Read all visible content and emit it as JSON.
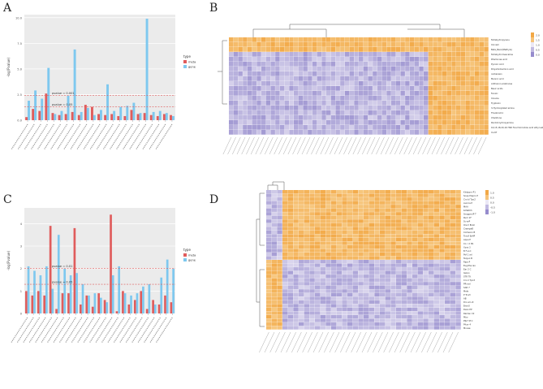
{
  "panels": {
    "a": "A",
    "b": "B",
    "c": "C",
    "d": "D"
  },
  "chart_data": [
    {
      "type": "bar",
      "panel": "A",
      "ylabel": "-log(Pvalue)",
      "yticks": [
        "0.0",
        "2.5",
        "5.0",
        "7.5",
        "10.0"
      ],
      "ylim": [
        0,
        10.3
      ],
      "categories": [
        "c1",
        "c2",
        "c3",
        "c4",
        "c5",
        "c6",
        "c7",
        "c8",
        "c9",
        "c10",
        "c11",
        "c12",
        "c13",
        "c14",
        "c15",
        "c16",
        "c17",
        "c18",
        "c19",
        "c20",
        "c21",
        "c22",
        "c23"
      ],
      "series": [
        {
          "name": "meta",
          "color": "#e05c5c",
          "values": [
            0.3,
            1.1,
            0.9,
            2.6,
            0.7,
            0.5,
            0.6,
            0.8,
            0.5,
            1.5,
            1.3,
            0.6,
            0.5,
            0.6,
            0.4,
            0.4,
            1.0,
            0.6,
            0.7,
            0.5,
            0.4,
            0.6,
            0.5
          ]
        },
        {
          "name": "gene",
          "color": "#7ec8ef",
          "values": [
            1.9,
            2.9,
            2.1,
            5.1,
            0.6,
            0.9,
            2.4,
            6.9,
            0.8,
            1.2,
            0.5,
            1.0,
            3.5,
            0.9,
            1.3,
            1.4,
            1.7,
            0.7,
            9.9,
            0.8,
            0.9,
            0.7,
            0.4
          ]
        }
      ],
      "thresholds": [
        {
          "label": "pvalue = 0.05",
          "value": 1.3
        },
        {
          "label": "pvalue = 0.001",
          "value": 2.4
        }
      ],
      "legend": {
        "title": "type",
        "position": "right"
      }
    },
    {
      "type": "bar",
      "panel": "C",
      "ylabel": "-log(Pvalue)",
      "yticks": [
        "0",
        "1",
        "2",
        "3",
        "4"
      ],
      "ylim": [
        0,
        4.7
      ],
      "categories": [
        "c1",
        "c2",
        "c3",
        "c4",
        "c5",
        "c6",
        "c7",
        "c8",
        "c9",
        "c10",
        "c11",
        "c12",
        "c13",
        "c14",
        "c15",
        "c16",
        "c17",
        "c18",
        "c19",
        "c20",
        "c21",
        "c22",
        "c23",
        "c24",
        "c25"
      ],
      "series": [
        {
          "name": "meta",
          "color": "#e05c5c",
          "values": [
            1.0,
            0.8,
            1.0,
            0.8,
            3.9,
            0.2,
            0.9,
            0.9,
            3.8,
            0.4,
            0.8,
            0.3,
            0.9,
            0.6,
            4.4,
            0.1,
            1.0,
            0.4,
            0.6,
            1.0,
            0.2,
            0.6,
            0.4,
            0.8,
            0.5
          ]
        },
        {
          "name": "gene",
          "color": "#7ec8ef",
          "values": [
            2.1,
            1.9,
            1.7,
            2.1,
            1.1,
            3.5,
            2.0,
            1.7,
            1.8,
            1.3,
            0.8,
            0.9,
            0.7,
            0.5,
            1.7,
            2.1,
            0.9,
            0.8,
            0.9,
            1.2,
            1.3,
            0.4,
            1.6,
            2.4,
            2.0
          ]
        }
      ],
      "thresholds": [
        {
          "label": "pvalue = 0.01",
          "value": 2.0
        },
        {
          "label": "pvalue = 0.05",
          "value": 1.3
        }
      ],
      "legend": {
        "title": "type",
        "position": "right"
      }
    },
    {
      "type": "heatmap",
      "panel": "B",
      "row_labels": [
        "Tetrahydropyrans",
        "Cinnam",
        "Beta_Benz(Methyls)",
        "Tetrahydromescaline",
        "Rhamnose acid",
        "Pyroxic Acid",
        "Polyamidoamino acid",
        "carbarasin",
        "Mannic acid",
        "Anthanon.arabinose",
        "Basic acids",
        "Ferulic",
        "Cineole",
        "Tryptoxin",
        "3-Hydroxylated amine",
        "Theobromic",
        "Chelidone",
        "Pent-6-hydroxyamine",
        "16,15,18,20,16 HSD Fenchlorindole acid ethyl ester",
        "CL-6T"
      ],
      "legend": {
        "labels": [
          "2.0",
          "1.5",
          "1.0",
          "0.5",
          "0.0"
        ],
        "position": "right"
      },
      "blocks": {
        "orange_from_col": 0.77,
        "top_orange_rows": 3
      }
    },
    {
      "type": "heatmap",
      "panel": "D",
      "row_labels": [
        "Klotpyro P1",
        "Snap P/apro P",
        "Cro bl Tpo2",
        "Aurora P",
        "MAA",
        "K-MatCh",
        "Snapper/P T",
        "Rum 1F",
        "Sc-arP",
        "Ore ll BcsC",
        "CrampaB",
        "Cortexon B",
        "Tonof 8a4P",
        "Aqua P",
        "Co r cl B1",
        "Ypos 3",
        "B F-A-C",
        "Pof 1 ad",
        "Tenjuo B",
        "Ripa P",
        "Eugrthe lax",
        "Ear 2 C",
        "Geluo",
        "STR TK",
        "Cro ll Tpo3",
        "PR-rad",
        "SAR 7",
        "Mele",
        "P Tcurt",
        "AB",
        "Dro al Ldl",
        "BrooU",
        "Dexo PP",
        "Raman C2",
        "Pibo",
        "Pfp7 M C",
        "Pfcor 4",
        "Mouse"
      ],
      "legend": {
        "labels": [
          "1.0",
          "0.5",
          "0.0",
          "-0.5",
          "-1.0"
        ],
        "position": "right"
      },
      "blocks": {
        "split_row": 19,
        "split_col": 3
      }
    }
  ]
}
